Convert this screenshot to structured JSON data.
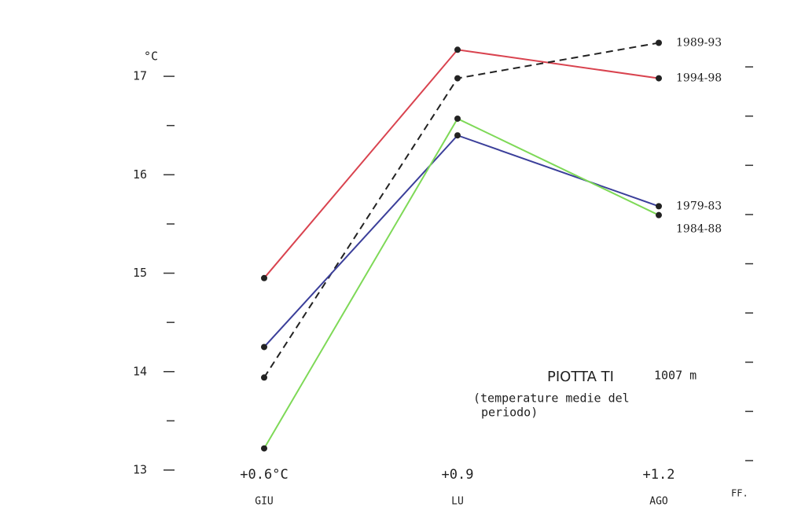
{
  "chart_data": {
    "type": "line",
    "y_unit": "°C",
    "categories": [
      "GIU",
      "LU",
      "AGO"
    ],
    "category_notes": [
      "+0.6°C",
      "+0.9",
      "+1.2"
    ],
    "series": [
      {
        "name": "1994-98",
        "color": "#d9434f",
        "dashed": false,
        "values": [
          14.95,
          17.27,
          16.98
        ]
      },
      {
        "name": "1989-93",
        "color": "#222222",
        "dashed": true,
        "values": [
          13.94,
          16.98,
          17.34
        ]
      },
      {
        "name": "1979-83",
        "color": "#3b3f9a",
        "dashed": false,
        "values": [
          14.25,
          16.4,
          15.68
        ]
      },
      {
        "name": "1984-88",
        "color": "#7ed957",
        "dashed": false,
        "values": [
          13.22,
          16.57,
          15.59
        ]
      }
    ],
    "ylim": [
      13,
      17.4
    ],
    "yticks": [
      13,
      14,
      15,
      16,
      17
    ],
    "minor_yticks": [
      13.5,
      14.5,
      15.5,
      16.5
    ],
    "annotation": {
      "station": "PIOTTA TI",
      "altitude": "1007 m",
      "lines": [
        "(temperature medie del",
        "periodo)"
      ]
    },
    "signature": "FF."
  }
}
